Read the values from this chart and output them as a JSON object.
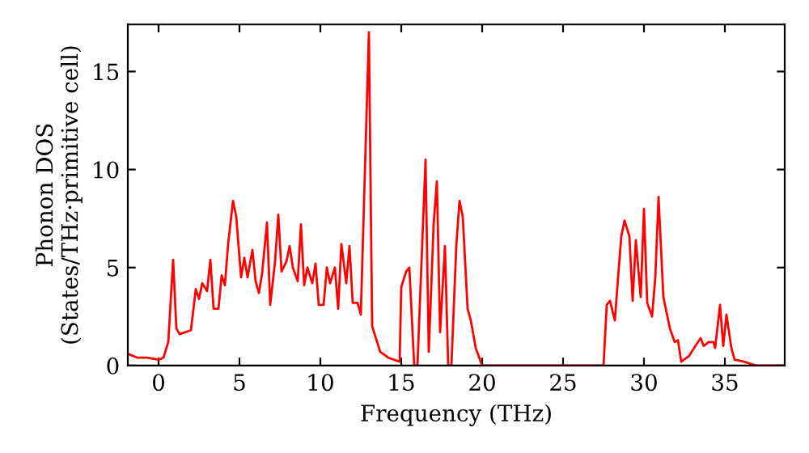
{
  "chart_data": {
    "type": "line",
    "xlabel": "Frequency (THz)",
    "ylabel": "Phonon DOS\n(States/THz·primitive cell)",
    "xlim": [
      -1.9,
      38.7
    ],
    "ylim": [
      0,
      17.4
    ],
    "xticks": [
      0,
      5,
      10,
      15,
      20,
      25,
      30,
      35
    ],
    "yticks": [
      0,
      5,
      10,
      15
    ],
    "grid": false,
    "marker": "none",
    "line_style": "solid",
    "series": [
      {
        "color": "#ff0000",
        "x": [
          -1.9,
          -1.3,
          -0.7,
          0,
          0.3,
          0.6,
          0.9,
          1.1,
          1.3,
          2.0,
          2.3,
          2.5,
          2.7,
          3.0,
          3.2,
          3.4,
          3.7,
          3.9,
          4.1,
          4.3,
          4.6,
          4.8,
          5.1,
          5.3,
          5.5,
          5.8,
          6.0,
          6.2,
          6.4,
          6.7,
          6.9,
          7.2,
          7.4,
          7.6,
          7.9,
          8.1,
          8.3,
          8.6,
          8.8,
          9.0,
          9.2,
          9.5,
          9.7,
          9.9,
          10.2,
          10.4,
          10.6,
          10.9,
          11.1,
          11.3,
          11.6,
          11.8,
          12.0,
          12.3,
          12.5,
          13.0,
          13.2,
          13.7,
          14.2,
          14.9,
          15.0,
          15.3,
          15.5,
          15.8,
          16.0,
          16.5,
          16.7,
          17.0,
          17.2,
          17.4,
          17.7,
          17.9,
          18.1,
          18.4,
          18.6,
          18.8,
          19.1,
          19.3,
          19.6,
          20.0,
          27.5,
          27.7,
          27.9,
          28.2,
          28.4,
          28.6,
          28.8,
          29.1,
          29.3,
          29.5,
          29.8,
          30.0,
          30.2,
          30.5,
          30.7,
          30.9,
          31.2,
          31.4,
          31.6,
          31.9,
          32.1,
          32.3,
          32.8,
          33.1,
          33.5,
          33.7,
          34.0,
          34.3,
          34.4,
          34.7,
          34.9,
          35.1,
          35.4,
          35.6,
          36.2,
          36.9,
          38.7
        ],
        "values": [
          0.6,
          0.4,
          0.4,
          0.3,
          0.4,
          1.2,
          5.4,
          1.9,
          1.6,
          1.8,
          3.9,
          3.4,
          4.2,
          3.8,
          5.4,
          2.9,
          2.9,
          4.6,
          4.1,
          6.2,
          8.4,
          7.6,
          4.5,
          5.5,
          4.5,
          5.9,
          4.3,
          3.7,
          4.7,
          7.3,
          3.1,
          5.3,
          7.7,
          4.8,
          5.3,
          6.1,
          5.0,
          4.3,
          7.2,
          4.1,
          5.0,
          4.2,
          5.2,
          3.1,
          3.1,
          5.0,
          4.2,
          5.0,
          2.9,
          6.2,
          4.2,
          6.1,
          3.2,
          3.2,
          2.6,
          17.0,
          2.0,
          0.7,
          0.4,
          0.2,
          4.0,
          4.8,
          5.0,
          0,
          0,
          10.5,
          0.7,
          7.2,
          9.4,
          1.7,
          6.1,
          0,
          0,
          6.1,
          8.4,
          7.6,
          2.9,
          2.3,
          0.9,
          0,
          0,
          3.1,
          3.3,
          2.3,
          4.5,
          6.6,
          7.4,
          6.6,
          3.3,
          6.4,
          3.5,
          8.0,
          3.2,
          2.5,
          4.5,
          8.6,
          3.5,
          2.7,
          1.9,
          1.2,
          1.3,
          0.2,
          0.5,
          0.9,
          1.4,
          1.0,
          1.2,
          1.2,
          0.9,
          3.1,
          1.0,
          2.6,
          0.9,
          0.3,
          0.2,
          0,
          0
        ]
      }
    ]
  }
}
